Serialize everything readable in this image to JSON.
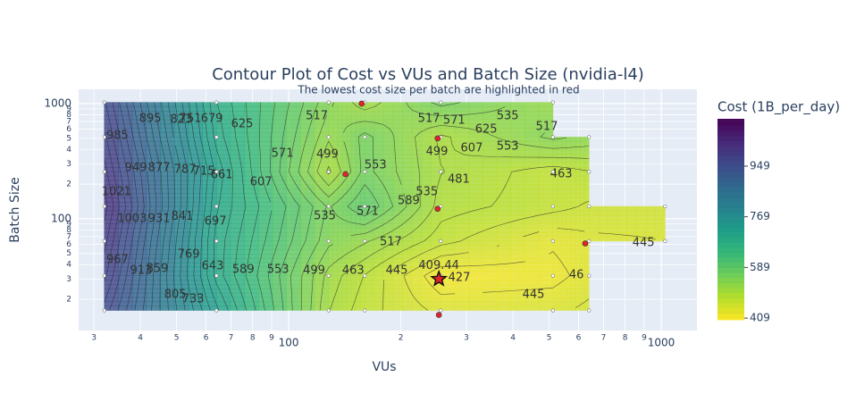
{
  "chart_data": {
    "type": "contour",
    "title": "Contour Plot of Cost vs VUs and Batch Size (nvidia-l4)",
    "subtitle": "The lowest cost size per batch are highlighted in red",
    "x_label": "VUs",
    "y_label": "Batch Size",
    "colorbar_title": "Cost (1B_per_day)",
    "x": [
      32,
      64,
      128,
      160,
      256,
      512,
      640,
      1024
    ],
    "y": [
      16,
      32,
      64,
      128,
      256,
      512,
      1024
    ],
    "z": [
      [
        960,
        720,
        500,
        470,
        440,
        440,
        450,
        null
      ],
      [
        990,
        690,
        510,
        480,
        412,
        420,
        435,
        null
      ],
      [
        1010,
        690,
        540,
        520,
        470,
        430,
        440,
        445
      ],
      [
        1030,
        700,
        550,
        590,
        490,
        470,
        460,
        455
      ],
      [
        1010,
        710,
        495,
        560,
        500,
        470,
        480,
        null
      ],
      [
        990,
        690,
        520,
        560,
        495,
        540,
        530,
        null
      ],
      [
        970,
        680,
        540,
        505,
        560,
        520,
        null,
        null
      ]
    ],
    "x_log": true,
    "y_log": true,
    "xlim": [
      27.3,
      1247
    ],
    "ylim": [
      10.7,
      1330
    ],
    "xticks": [
      {
        "value": 30,
        "label": "3"
      },
      {
        "value": 40,
        "label": "4"
      },
      {
        "value": 50,
        "label": "5"
      },
      {
        "value": 60,
        "label": "6"
      },
      {
        "value": 70,
        "label": "7"
      },
      {
        "value": 80,
        "label": "8"
      },
      {
        "value": 90,
        "label": "9"
      },
      100,
      {
        "value": 200,
        "label": "2"
      },
      {
        "value": 300,
        "label": "3"
      },
      {
        "value": 400,
        "label": "4"
      },
      {
        "value": 500,
        "label": "5"
      },
      {
        "value": 600,
        "label": "6"
      },
      {
        "value": 700,
        "label": "7"
      },
      {
        "value": 800,
        "label": "8"
      },
      {
        "value": 900,
        "label": "9"
      },
      1000
    ],
    "yticks": [
      {
        "value": 20,
        "label": "2"
      },
      {
        "value": 30,
        "label": "3"
      },
      {
        "value": 40,
        "label": "4"
      },
      {
        "value": 50,
        "label": "5"
      },
      {
        "value": 60,
        "label": "6"
      },
      {
        "value": 70,
        "label": "7"
      },
      {
        "value": 80,
        "label": "8"
      },
      {
        "value": 90,
        "label": "9"
      },
      100,
      {
        "value": 200,
        "label": "2"
      },
      {
        "value": 300,
        "label": "3"
      },
      {
        "value": 400,
        "label": "4"
      },
      {
        "value": 500,
        "label": "5"
      },
      {
        "value": 600,
        "label": "6"
      },
      {
        "value": 700,
        "label": "7"
      },
      {
        "value": 800,
        "label": "8"
      },
      {
        "value": 900,
        "label": "9"
      },
      1000
    ],
    "grid": true,
    "colorscale": "Viridis",
    "reversescale": true,
    "zlim": [
      403,
      1117
    ],
    "colorbar_ticks": [
      409,
      589,
      769,
      949
    ],
    "contours": {
      "start": 409,
      "size": 18
    },
    "lowest_points": {
      "x": [
        157,
        251,
        251,
        142,
        625,
        253
      ],
      "y": [
        1000,
        499,
        122,
        244,
        61,
        14.6
      ]
    },
    "min_point": {
      "x": 253,
      "y": 30,
      "z": 409.44
    },
    "contour_labels": [
      {
        "text": "985",
        "x": 34.7,
        "y": 526
      },
      {
        "text": "895",
        "x": 42.5,
        "y": 738
      },
      {
        "text": "823",
        "x": 51.5,
        "y": 725
      },
      {
        "text": "751",
        "x": 54.5,
        "y": 738
      },
      {
        "text": "679",
        "x": 62.2,
        "y": 738
      },
      {
        "text": "625",
        "x": 75.0,
        "y": 663
      },
      {
        "text": "517",
        "x": 119,
        "y": 779
      },
      {
        "text": "517",
        "x": 238,
        "y": 738
      },
      {
        "text": "571",
        "x": 278,
        "y": 713
      },
      {
        "text": "535",
        "x": 387,
        "y": 779
      },
      {
        "text": "625",
        "x": 339,
        "y": 596
      },
      {
        "text": "517",
        "x": 493,
        "y": 629
      },
      {
        "text": "607",
        "x": 310,
        "y": 410
      },
      {
        "text": "553",
        "x": 387,
        "y": 425
      },
      {
        "text": "499",
        "x": 250,
        "y": 381
      },
      {
        "text": "949",
        "x": 38.9,
        "y": 277
      },
      {
        "text": "877",
        "x": 44.9,
        "y": 277
      },
      {
        "text": "787",
        "x": 52.7,
        "y": 267
      },
      {
        "text": "715",
        "x": 59.2,
        "y": 258
      },
      {
        "text": "661",
        "x": 66.1,
        "y": 240
      },
      {
        "text": "607",
        "x": 84.3,
        "y": 208
      },
      {
        "text": "571",
        "x": 96.2,
        "y": 368
      },
      {
        "text": "499",
        "x": 127,
        "y": 361
      },
      {
        "text": "553",
        "x": 171,
        "y": 292
      },
      {
        "text": "481",
        "x": 286,
        "y": 219
      },
      {
        "text": "463",
        "x": 539,
        "y": 244
      },
      {
        "text": "1021",
        "x": 34.5,
        "y": 171
      },
      {
        "text": "1003",
        "x": 38.0,
        "y": 100
      },
      {
        "text": "931",
        "x": 44.9,
        "y": 100
      },
      {
        "text": "841",
        "x": 51.8,
        "y": 104
      },
      {
        "text": "697",
        "x": 63.6,
        "y": 94.8
      },
      {
        "text": "535",
        "x": 125,
        "y": 105
      },
      {
        "text": "571",
        "x": 163,
        "y": 115
      },
      {
        "text": "589",
        "x": 210,
        "y": 143
      },
      {
        "text": "535",
        "x": 235,
        "y": 171
      },
      {
        "text": "517",
        "x": 188,
        "y": 62.9
      },
      {
        "text": "445",
        "x": 896,
        "y": 61.8
      },
      {
        "text": "967",
        "x": 34.7,
        "y": 44.0
      },
      {
        "text": "913",
        "x": 40.2,
        "y": 35.5
      },
      {
        "text": "859",
        "x": 44.4,
        "y": 36.8
      },
      {
        "text": "769",
        "x": 53.9,
        "y": 49.0
      },
      {
        "text": "643",
        "x": 62.5,
        "y": 38.8
      },
      {
        "text": "589",
        "x": 75.5,
        "y": 36.2
      },
      {
        "text": "553",
        "x": 93.6,
        "y": 36.2
      },
      {
        "text": "499",
        "x": 117,
        "y": 35.5
      },
      {
        "text": "463",
        "x": 149,
        "y": 35.5
      },
      {
        "text": "445",
        "x": 195,
        "y": 35.5
      },
      {
        "text": "427",
        "x": 287,
        "y": 30.8
      },
      {
        "text": "445",
        "x": 454,
        "y": 21.9
      },
      {
        "text": "46",
        "x": 592,
        "y": 32.5
      },
      {
        "text": "805",
        "x": 49.6,
        "y": 21.9
      },
      {
        "text": "733",
        "x": 55.4,
        "y": 20.0
      }
    ]
  }
}
